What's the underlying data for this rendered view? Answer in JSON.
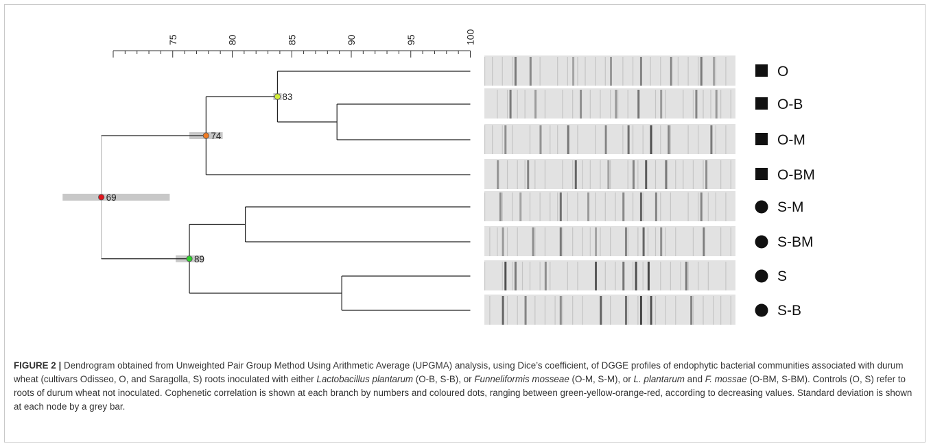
{
  "figure": {
    "scale": {
      "min": 70,
      "max": 100,
      "tick_step": 1,
      "labeled_ticks": [
        "75",
        "80",
        "85",
        "90",
        "95",
        "100"
      ]
    },
    "samples": [
      {
        "label": "O",
        "marker": "square"
      },
      {
        "label": "O-B",
        "marker": "square"
      },
      {
        "label": "O-M",
        "marker": "square"
      },
      {
        "label": "O-BM",
        "marker": "square"
      },
      {
        "label": "S-M",
        "marker": "circle"
      },
      {
        "label": "S-BM",
        "marker": "circle"
      },
      {
        "label": "S",
        "marker": "circle"
      },
      {
        "label": "S-B",
        "marker": "circle"
      }
    ],
    "nodes": [
      {
        "id": "root",
        "label": "69",
        "similarity": 69.0,
        "sd": 6.5,
        "color": "#e0141c",
        "children": [
          "A",
          "B"
        ]
      },
      {
        "id": "A",
        "label": "74",
        "similarity": 77.8,
        "sd": 2.8,
        "color": "#f07a22",
        "children": [
          "A1",
          "O-BM"
        ]
      },
      {
        "id": "A1",
        "label": "83",
        "similarity": 83.8,
        "sd": 0.7,
        "color": "#d4ef38",
        "children": [
          "O",
          "A2"
        ]
      },
      {
        "id": "A2",
        "similarity": 88.8,
        "children": [
          "O-B",
          "O-M"
        ]
      },
      {
        "id": "B",
        "label": "89",
        "similarity": 76.4,
        "sd": 2.3,
        "color": "#2fd12c",
        "children": [
          "B1",
          "B2"
        ]
      },
      {
        "id": "B1",
        "similarity": 81.1,
        "children": [
          "S-M",
          "S-BM"
        ]
      },
      {
        "id": "B2",
        "similarity": 89.2,
        "children": [
          "S",
          "S-B"
        ]
      }
    ],
    "colors": {
      "branch": "#222222",
      "sd_bar": "#c8c8c8",
      "root_stem": "#bbbbbb",
      "marker": "#111111"
    }
  },
  "caption": {
    "lead": "FIGURE 2 |",
    "parts": [
      " Dendrogram obtained from Unweighted Pair Group Method Using Arithmetic Average (UPGMA) analysis, using Dice’s coefficient, of DGGE profiles of endophytic bacterial communities associated with durum wheat (cultivars Odisseo, O, and Saragolla, S) roots inoculated with either ",
      "Lactobacillus plantarum",
      " (O-B, S-B), or ",
      "Funneliformis mosseae",
      " (O-M, S-M), or ",
      "L. plantarum",
      " and ",
      "F. mossae",
      " (O-BM, S-BM). Controls (O, S) refer to roots of durum wheat not inoculated. Cophenetic correlation is shown at each branch by numbers and coloured dots, ranging between green-yellow-orange-red, according to decreasing values. Standard deviation is shown at each node by a grey bar."
    ]
  }
}
